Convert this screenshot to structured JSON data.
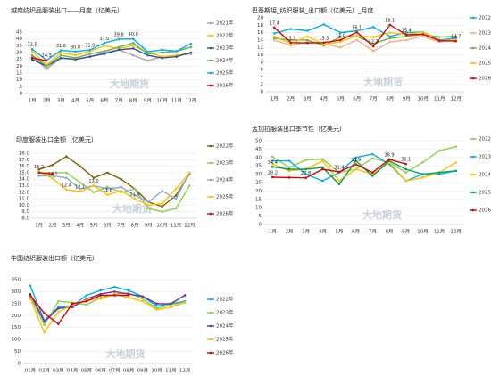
{
  "chart_data": [
    {
      "type": "line",
      "title": "越南纺织品服装出口——月度（亿美元）",
      "watermark": "大地期货",
      "categories": [
        "1月",
        "2月",
        "3月",
        "4月",
        "5月",
        "6月",
        "7月",
        "8月",
        "9月",
        "10月",
        "11月",
        "12月"
      ],
      "ylim": [
        0,
        45
      ],
      "yticks": [
        0,
        5,
        10,
        15,
        20,
        25,
        30,
        35,
        40,
        45
      ],
      "legend": "right",
      "series": [
        {
          "name": "2021年",
          "color": "#a5a5a5",
          "values": [
            27,
            18,
            26,
            25,
            27,
            30,
            32,
            28,
            24,
            27,
            28,
            29
          ]
        },
        {
          "name": "2022年",
          "color": "#ffc000",
          "values": [
            31,
            21,
            30,
            28,
            31,
            35,
            33,
            35,
            30,
            27,
            28,
            30
          ]
        },
        {
          "name": "2023年",
          "color": "#2e4fa3",
          "values": [
            25,
            20,
            26,
            25,
            27,
            29,
            32,
            33,
            28,
            26,
            27,
            30
          ]
        },
        {
          "name": "2024年",
          "color": "#70ad47",
          "values": [
            28,
            20,
            28,
            26,
            29,
            31,
            34,
            37,
            29,
            30,
            31,
            34
          ]
        },
        {
          "name": "2025年",
          "color": "#00b0f0",
          "values": [
            32.5,
            24.3,
            31.6,
            30.8,
            31.9,
            37.0,
            39.8,
            40.0,
            30.5,
            32,
            31,
            36.5
          ],
          "value_labels": [
            "32.5",
            "24.3",
            "31.6",
            "30.8",
            "31.9",
            "37.0",
            "39.8",
            "40.0",
            null,
            null,
            null,
            null
          ]
        },
        {
          "name": "2026年",
          "color": "#e00000",
          "values": [
            26,
            24,
            null,
            null,
            null,
            null,
            null,
            null,
            null,
            null,
            null,
            null
          ]
        }
      ]
    },
    {
      "type": "line",
      "title": "巴基斯坦_纺织服装_出口额（亿美元）_月度",
      "watermark": "大地期货",
      "categories": [
        "1月",
        "2月",
        "3月",
        "4月",
        "5月",
        "6月",
        "7月",
        "8月",
        "9月",
        "10月",
        "11月",
        "12月"
      ],
      "ylim": [
        0,
        20
      ],
      "yticks": [
        0,
        2,
        4,
        6,
        8,
        10,
        12,
        14,
        16,
        18,
        20
      ],
      "legend": "right",
      "series": [
        {
          "name": "2022年",
          "color": "#00b0f0",
          "values": [
            15.8,
            17.0,
            16.5,
            18.2,
            16.0,
            16.5,
            17.5,
            15.0,
            16.0,
            16.2,
            14.0,
            14.5
          ]
        },
        {
          "name": "2023年",
          "color": "#f4b183",
          "values": [
            14.0,
            12.5,
            13.5,
            13.0,
            12.0,
            14.0,
            11.0,
            13.5,
            14.0,
            15.0,
            13.5,
            14.0
          ]
        },
        {
          "name": "2024年",
          "color": "#70ad47",
          "values": [
            14.5,
            14.0,
            14.0,
            12.5,
            14.8,
            15.0,
            13.0,
            14.5,
            15.0,
            15.5,
            14.8,
            15.0
          ]
        },
        {
          "name": "2025年",
          "color": "#ffc000",
          "values": [
            15.0,
            13.0,
            15.0,
            12.8,
            13.5,
            15.2,
            14.8,
            16.0,
            15.5,
            16.2,
            13.8,
            14.0
          ]
        },
        {
          "name": "2026年",
          "color": "#e00000",
          "values": [
            17.4,
            13.3,
            13.2,
            13.3,
            14.0,
            16.1,
            12.3,
            18.1,
            15.4,
            15.6,
            13.8,
            13.7
          ],
          "value_labels": [
            "17.4",
            "13.3",
            null,
            "13.3",
            "14.0",
            "16.1",
            "12.3",
            "18.1",
            "15.4",
            null,
            null,
            "13.7"
          ]
        }
      ]
    },
    {
      "type": "line",
      "title": "印度服装出口金额（亿美元）",
      "watermark": "大地期货",
      "categories": [
        "1月",
        "2月",
        "3月",
        "4月",
        "5月",
        "6月",
        "7月",
        "8月",
        "9月",
        "10月",
        "11月",
        "12月"
      ],
      "ylim": [
        8,
        18
      ],
      "yticks": [
        {
          "value": 8,
          "label": "8.0"
        },
        {
          "value": 9,
          "label": "9.0"
        },
        {
          "value": 10,
          "label": "10.0"
        },
        {
          "value": 11,
          "label": "11.0"
        },
        {
          "value": 12,
          "label": "12.0"
        },
        {
          "value": 13,
          "label": "13.0"
        },
        {
          "value": 14,
          "label": "14.0"
        },
        {
          "value": 15,
          "label": "15.0"
        },
        {
          "value": 16,
          "label": "16.0"
        },
        {
          "value": 17,
          "label": "17.0"
        },
        {
          "value": 18,
          "label": "18.0"
        }
      ],
      "legend": "right",
      "series": [
        {
          "name": "2022年",
          "color": "#7f6000",
          "values": [
            15.5,
            16.2,
            17.5,
            16.0,
            14.2,
            15.0,
            14.0,
            12.5,
            10.5,
            9.8,
            11.5,
            14.8
          ]
        },
        {
          "name": "2023年",
          "color": "#92d050",
          "values": [
            15.0,
            15.0,
            15.0,
            13.5,
            12.0,
            12.8,
            12.0,
            12.5,
            9.5,
            9.0,
            9.5,
            13.0
          ]
        },
        {
          "name": "2024年",
          "color": "#8ea9db",
          "values": [
            14.5,
            14.5,
            14.2,
            12.5,
            13.0,
            12.5,
            12.8,
            11.5,
            10.5,
            12.2,
            11.0,
            15.0
          ]
        },
        {
          "name": "2025年",
          "color": "#ffc000",
          "values": [
            15.2,
            14.1,
            12.4,
            12.1,
            13.0,
            11.6,
            12.2,
            11.0,
            10.0,
            10.3,
            12.5,
            15.0
          ],
          "value_labels": [
            "15.2",
            "14.1",
            "12.4",
            "12.1",
            "13.0",
            "11.6",
            null,
            "11.0",
            null,
            null,
            null,
            null
          ]
        },
        {
          "name": "2026年",
          "color": "#e00000",
          "values": [
            15.0,
            14.8,
            null,
            null,
            null,
            null,
            null,
            null,
            null,
            null,
            null,
            null
          ]
        }
      ]
    },
    {
      "type": "line",
      "title": "孟加拉服装出口季节性（亿美元）",
      "watermark": "大地期货",
      "categories": [
        "1月",
        "2月",
        "3月",
        "4月",
        "5月",
        "6月",
        "7月",
        "8月",
        "9月",
        "10月",
        "11月",
        "12月"
      ],
      "ylim": [
        0,
        50
      ],
      "yticks": [
        0,
        5,
        10,
        15,
        20,
        25,
        30,
        35,
        40,
        45,
        50
      ],
      "legend": "right",
      "series": [
        {
          "name": "2022年",
          "color": "#92d050",
          "values": [
            40.5,
            34,
            38.5,
            39,
            31,
            33,
            39.5,
            37,
            31,
            37,
            44,
            46.5
          ]
        },
        {
          "name": "2023年",
          "color": "#00b0f0",
          "values": [
            38,
            38,
            30,
            26,
            31,
            40,
            42,
            36,
            26,
            30,
            30,
            32
          ]
        },
        {
          "name": "2024年",
          "color": "#ffc000",
          "values": [
            36,
            32,
            33,
            38,
            26,
            33,
            30,
            37,
            26,
            28,
            31,
            37
          ]
        },
        {
          "name": "2025年",
          "color": "#00a651",
          "values": [
            34.4,
            33,
            33,
            34,
            24,
            38,
            29,
            38,
            33,
            30,
            31,
            32
          ],
          "value_labels": [
            "34.4",
            null,
            null,
            null,
            null,
            null,
            null,
            null,
            null,
            null,
            null,
            null
          ]
        },
        {
          "name": "2026年",
          "color": "#e00000",
          "values": [
            28.2,
            28.0,
            27.8,
            33.0,
            31.4,
            35.9,
            31.0,
            38.9,
            36.1,
            null,
            null,
            null
          ],
          "value_labels": [
            "28.2",
            null,
            "27.8",
            null,
            "31.4",
            "35.9",
            null,
            "38.9",
            "36.1",
            null,
            null,
            null
          ]
        }
      ]
    },
    {
      "type": "line",
      "title": "中国纺织服装出口额（亿美元）",
      "watermark": "大地期货",
      "categories": [
        "01月",
        "02月",
        "03月",
        "04月",
        "05月",
        "06月",
        "07月",
        "08月",
        "09月",
        "10月",
        "11月",
        "12月"
      ],
      "ylim": [
        0,
        350
      ],
      "yticks": [
        0,
        50,
        100,
        150,
        200,
        250,
        300,
        350
      ],
      "legend": "right",
      "series": [
        {
          "name": "2022年",
          "color": "#00b0f0",
          "values": [
            325,
            180,
            235,
            240,
            285,
            305,
            320,
            305,
            280,
            240,
            250,
            260
          ]
        },
        {
          "name": "2023年",
          "color": "#92d050",
          "values": [
            280,
            160,
            260,
            255,
            245,
            275,
            290,
            295,
            270,
            230,
            245,
            255
          ]
        },
        {
          "name": "2024年",
          "color": "#7030a0",
          "values": [
            290,
            175,
            230,
            235,
            270,
            290,
            300,
            290,
            280,
            250,
            250,
            285
          ]
        },
        {
          "name": "2025年",
          "color": "#ffc000",
          "values": [
            270,
            130,
            215,
            245,
            265,
            270,
            290,
            275,
            260,
            225,
            235,
            255
          ]
        },
        {
          "name": "2026年",
          "color": "#e00000",
          "values": [
            285,
            210,
            165,
            250,
            260,
            285,
            285,
            285,
            null,
            null,
            null,
            null
          ]
        }
      ]
    }
  ]
}
